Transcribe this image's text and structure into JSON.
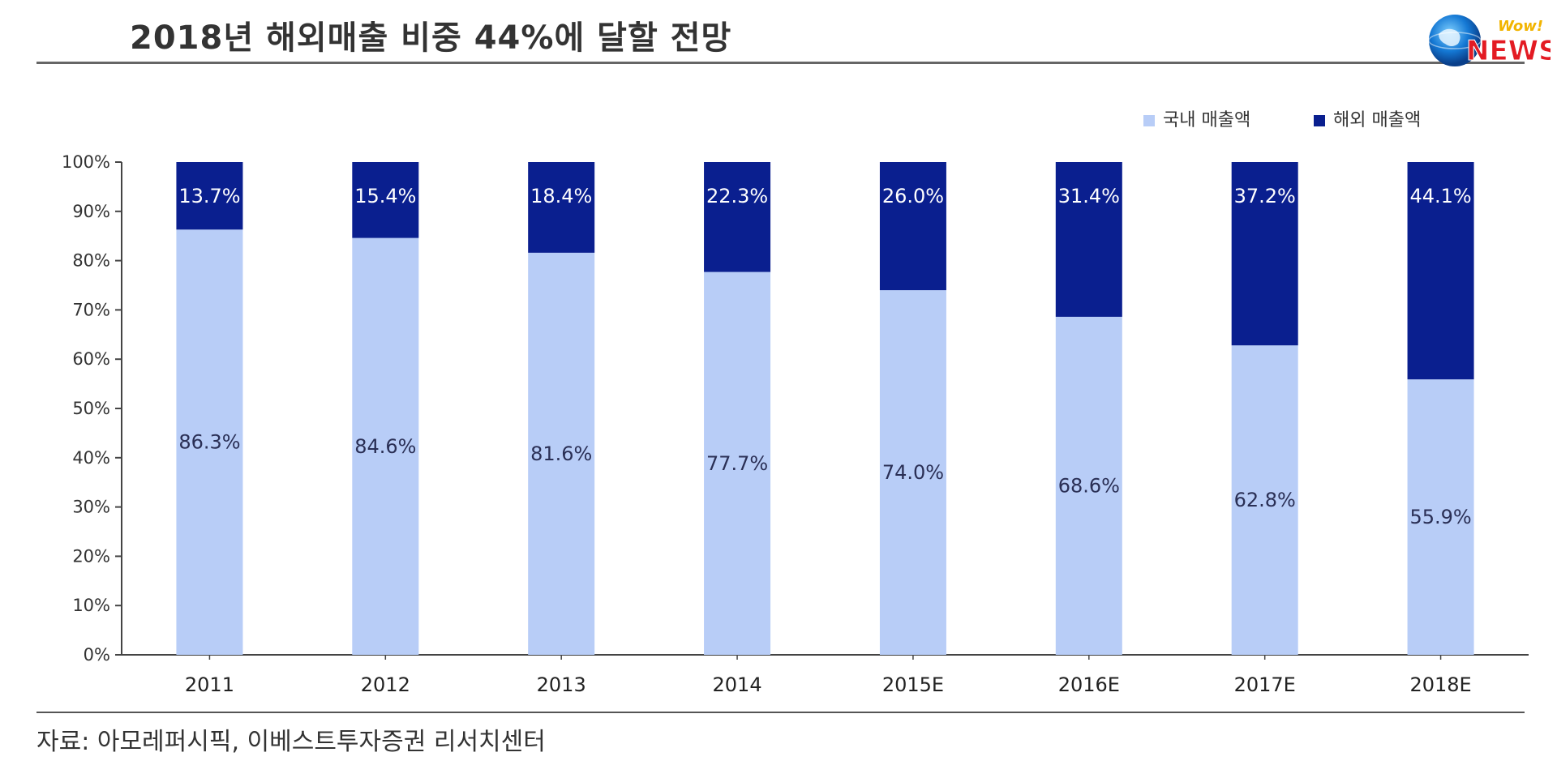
{
  "header": {
    "title": "2018년 해외매출 비중 44%에 달할 전망"
  },
  "logo": {
    "top_text": "Wow!",
    "main_text": "NEWS",
    "icon": "globe-icon"
  },
  "footer": {
    "source": "자료: 아모레퍼시픽, 이베스트투자증권 리서치센터"
  },
  "colors": {
    "domestic": "#b8cdf7",
    "overseas": "#0a1f8f",
    "axis": "#444444"
  },
  "chart_data": {
    "type": "bar",
    "stacked": true,
    "title": "2018년 해외매출 비중 44%에 달할 전망",
    "categories": [
      "2011",
      "2012",
      "2013",
      "2014",
      "2015E",
      "2016E",
      "2017E",
      "2018E"
    ],
    "series": [
      {
        "name": "국내 매출액",
        "values": [
          86.3,
          84.6,
          81.6,
          77.7,
          74.0,
          68.6,
          62.8,
          55.9
        ]
      },
      {
        "name": "해외 매출액",
        "values": [
          13.7,
          15.4,
          18.4,
          22.3,
          26.0,
          31.4,
          37.2,
          44.1
        ]
      }
    ],
    "data_labels": [
      [
        "86.3%",
        "84.6%",
        "81.6%",
        "77.7%",
        "74.0%",
        "68.6%",
        "62.8%",
        "55.9%"
      ],
      [
        "13.7%",
        "15.4%",
        "18.4%",
        "22.3%",
        "26.0%",
        "31.4%",
        "37.2%",
        "44.1%"
      ]
    ],
    "ylim": [
      0,
      100
    ],
    "yticks": [
      "0%",
      "10%",
      "20%",
      "30%",
      "40%",
      "50%",
      "60%",
      "70%",
      "80%",
      "90%",
      "100%"
    ],
    "xlabel": "",
    "ylabel": "",
    "legend": {
      "position": "top-right"
    },
    "grid": false
  }
}
